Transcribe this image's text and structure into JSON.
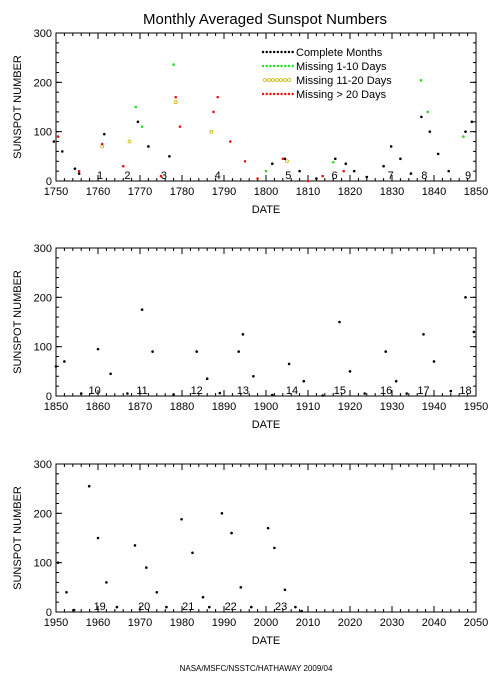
{
  "title": "Monthly Averaged Sunspot Numbers",
  "credit": "NASA/MSFC/NSSTC/HATHAWAY 2009/04",
  "colors": {
    "complete": "#000000",
    "missing_1_10": "#22dd22",
    "missing_11_20": "#c8b400",
    "missing_gt_20": "#ee1111"
  },
  "chart_data": [
    {
      "type": "scatter",
      "title": "Monthly Averaged Sunspot Numbers",
      "xlabel": "DATE",
      "ylabel": "SUNSPOT NUMBER",
      "xlim": [
        1750,
        1850
      ],
      "ylim": [
        0,
        300
      ],
      "xticks": [
        "1750",
        "1760",
        "1770",
        "1780",
        "1790",
        "1800",
        "1810",
        "1820",
        "1830",
        "1840",
        "1850"
      ],
      "yticks": [
        "0",
        "100",
        "200",
        "300"
      ],
      "grid": false,
      "legend_position": "top-right",
      "legend": [
        {
          "label": "Complete Months",
          "color": "#000000",
          "marker": "dot"
        },
        {
          "label": "Missing 1-10 Days",
          "color": "#22dd22",
          "marker": "dot"
        },
        {
          "label": "Missing 11-20 Days",
          "color": "#c8b400",
          "marker": "open-circle"
        },
        {
          "label": "Missing > 20 Days",
          "color": "#ee1111",
          "marker": "dot"
        }
      ],
      "cycles": [
        {
          "label": "1",
          "x": 1760.5
        },
        {
          "label": "2",
          "x": 1767.0
        },
        {
          "label": "3",
          "x": 1775.7
        },
        {
          "label": "4",
          "x": 1788.5
        },
        {
          "label": "5",
          "x": 1805.3
        },
        {
          "label": "6",
          "x": 1816.3
        },
        {
          "label": "7",
          "x": 1829.7
        },
        {
          "label": "8",
          "x": 1837.7
        },
        {
          "label": "9",
          "x": 1848.1
        }
      ],
      "series": [
        {
          "name": "Complete Months",
          "color": "#000000",
          "points": [
            [
              1749.5,
              80
            ],
            [
              1751.5,
              60
            ],
            [
              1754.5,
              25
            ],
            [
              1755.5,
              15
            ],
            [
              1761.5,
              95
            ],
            [
              1769.5,
              120
            ],
            [
              1772.0,
              70
            ],
            [
              1777.0,
              50
            ],
            [
              1801.5,
              35
            ],
            [
              1804.5,
              45
            ],
            [
              1808.0,
              20
            ],
            [
              1812.0,
              5
            ],
            [
              1816.5,
              45
            ],
            [
              1819.0,
              35
            ],
            [
              1821.0,
              20
            ],
            [
              1824.0,
              8
            ],
            [
              1828.0,
              30
            ],
            [
              1829.8,
              70
            ],
            [
              1832.0,
              45
            ],
            [
              1834.5,
              15
            ],
            [
              1837.0,
              130
            ],
            [
              1839.0,
              100
            ],
            [
              1841.0,
              55
            ],
            [
              1843.5,
              20
            ],
            [
              1847.5,
              100
            ],
            [
              1849.0,
              120
            ]
          ]
        },
        {
          "name": "Missing 1-10 Days",
          "color": "#22dd22",
          "points": [
            [
              1769.0,
              150
            ],
            [
              1770.5,
              110
            ],
            [
              1778.0,
              236
            ],
            [
              1800.0,
              20
            ],
            [
              1816.0,
              38
            ],
            [
              1836.9,
              204
            ],
            [
              1838.5,
              140
            ],
            [
              1847.0,
              90
            ]
          ]
        },
        {
          "name": "Missing 11-20 Days",
          "color": "#c8b400",
          "points": [
            [
              1761.0,
              70
            ],
            [
              1767.5,
              80
            ],
            [
              1778.5,
              160
            ],
            [
              1787.0,
              100
            ],
            [
              1805.0,
              40
            ]
          ]
        },
        {
          "name": "Missing > 20 Days",
          "color": "#ee1111",
          "points": [
            [
              1750.5,
              90
            ],
            [
              1755.5,
              20
            ],
            [
              1761.0,
              75
            ],
            [
              1766.0,
              30
            ],
            [
              1775.0,
              10
            ],
            [
              1778.5,
              170
            ],
            [
              1779.5,
              110
            ],
            [
              1787.5,
              140
            ],
            [
              1788.5,
              170
            ],
            [
              1791.5,
              80
            ],
            [
              1795.0,
              40
            ],
            [
              1798.0,
              5
            ],
            [
              1804.0,
              45
            ],
            [
              1810.0,
              0
            ],
            [
              1813.5,
              10
            ],
            [
              1818.5,
              20
            ]
          ]
        }
      ]
    },
    {
      "type": "scatter",
      "xlabel": "DATE",
      "ylabel": "SUNSPOT NUMBER",
      "xlim": [
        1850,
        1950
      ],
      "ylim": [
        0,
        300
      ],
      "xticks": [
        "1850",
        "1860",
        "1870",
        "1880",
        "1890",
        "1900",
        "1910",
        "1920",
        "1930",
        "1940",
        "1950"
      ],
      "yticks": [
        "0",
        "100",
        "200",
        "300"
      ],
      "grid": false,
      "cycles": [
        {
          "label": "10",
          "x": 1859.2
        },
        {
          "label": "11",
          "x": 1870.5
        },
        {
          "label": "12",
          "x": 1883.5
        },
        {
          "label": "13",
          "x": 1894.5
        },
        {
          "label": "14",
          "x": 1906.2
        },
        {
          "label": "15",
          "x": 1917.6
        },
        {
          "label": "16",
          "x": 1928.6
        },
        {
          "label": "17",
          "x": 1937.5
        },
        {
          "label": "18",
          "x": 1947.5
        }
      ],
      "series": [
        {
          "name": "Complete Months",
          "color": "#000000",
          "points": [
            [
              1850.0,
              60
            ],
            [
              1852.0,
              70
            ],
            [
              1856.0,
              5
            ],
            [
              1860.0,
              95
            ],
            [
              1863.0,
              45
            ],
            [
              1867.0,
              5
            ],
            [
              1870.5,
              175
            ],
            [
              1873.0,
              90
            ],
            [
              1878.0,
              3
            ],
            [
              1883.5,
              90
            ],
            [
              1886.0,
              35
            ],
            [
              1889.0,
              6
            ],
            [
              1893.5,
              90
            ],
            [
              1894.5,
              125
            ],
            [
              1897.0,
              40
            ],
            [
              1901.5,
              2
            ],
            [
              1905.5,
              65
            ],
            [
              1909.0,
              30
            ],
            [
              1913.5,
              1
            ],
            [
              1917.5,
              150
            ],
            [
              1920.0,
              50
            ],
            [
              1923.5,
              5
            ],
            [
              1928.5,
              90
            ],
            [
              1931.0,
              30
            ],
            [
              1933.5,
              5
            ],
            [
              1937.5,
              125
            ],
            [
              1940.0,
              70
            ],
            [
              1944.0,
              10
            ],
            [
              1947.5,
              200
            ],
            [
              1949.5,
              130
            ]
          ]
        }
      ]
    },
    {
      "type": "scatter",
      "xlabel": "DATE",
      "ylabel": "SUNSPOT NUMBER",
      "xlim": [
        1950,
        2050
      ],
      "ylim": [
        0,
        300
      ],
      "xticks": [
        "1950",
        "1960",
        "1970",
        "1980",
        "1990",
        "2000",
        "2010",
        "2020",
        "2030",
        "2040",
        "2050"
      ],
      "yticks": [
        "0",
        "100",
        "200",
        "300"
      ],
      "grid": false,
      "cycles": [
        {
          "label": "19",
          "x": 1960.4
        },
        {
          "label": "20",
          "x": 1971.0
        },
        {
          "label": "21",
          "x": 1981.5
        },
        {
          "label": "22",
          "x": 1991.6
        },
        {
          "label": "23",
          "x": 2003.6
        }
      ],
      "series": [
        {
          "name": "Complete Months",
          "color": "#000000",
          "points": [
            [
              1950.5,
              100
            ],
            [
              1952.5,
              40
            ],
            [
              1954.3,
              4
            ],
            [
              1957.9,
              255
            ],
            [
              1960.0,
              150
            ],
            [
              1962.0,
              60
            ],
            [
              1964.5,
              10
            ],
            [
              1968.8,
              135
            ],
            [
              1971.5,
              90
            ],
            [
              1974.0,
              40
            ],
            [
              1976.3,
              10
            ],
            [
              1979.9,
              188
            ],
            [
              1982.5,
              120
            ],
            [
              1985.0,
              30
            ],
            [
              1986.5,
              10
            ],
            [
              1989.5,
              200
            ],
            [
              1991.8,
              160
            ],
            [
              1994.0,
              50
            ],
            [
              1996.5,
              10
            ],
            [
              2000.5,
              170
            ],
            [
              2002.0,
              130
            ],
            [
              2004.5,
              45
            ],
            [
              2007.0,
              10
            ],
            [
              2008.5,
              2
            ]
          ]
        }
      ]
    }
  ]
}
